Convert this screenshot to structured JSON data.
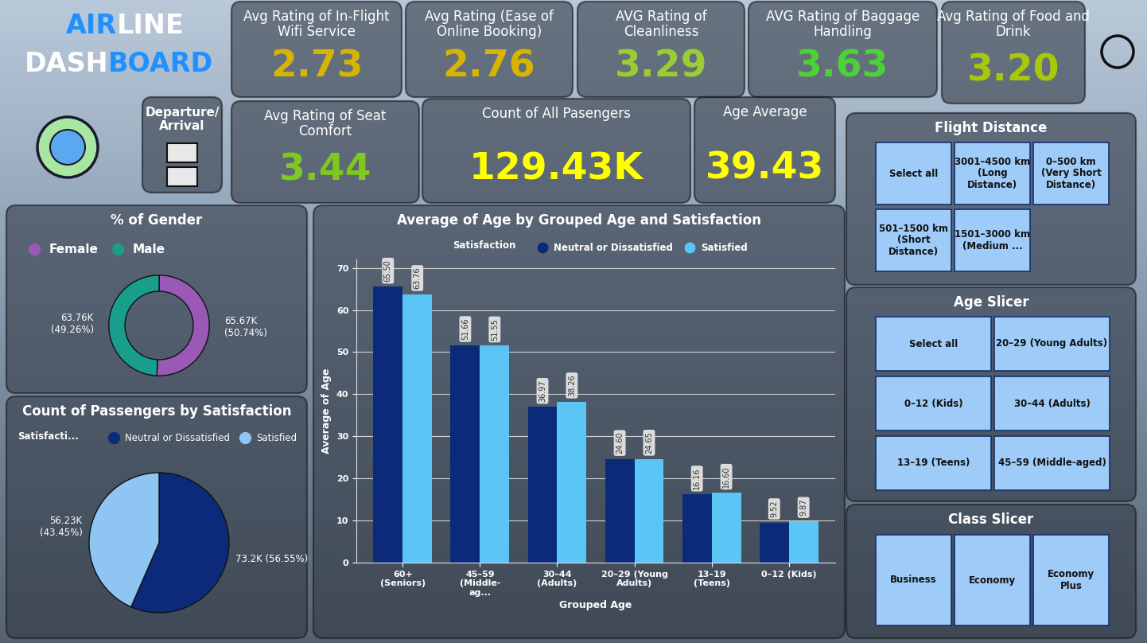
{
  "header": {
    "title_lines": [
      [
        "AIR",
        "LINE"
      ],
      [
        "DASH",
        "BOARD"
      ]
    ],
    "departure_label": "Departure/\nArrival"
  },
  "kpis": [
    {
      "label": "Avg Rating of In-Flight Wifi Service",
      "value": "2.73",
      "color": "#d6b400"
    },
    {
      "label": "Avg Rating (Ease of Online Booking)",
      "value": "2.76",
      "color": "#d6b400"
    },
    {
      "label": "AVG Rating of Cleanliness",
      "value": "3.29",
      "color": "#9acd32"
    },
    {
      "label": "AVG Rating of Baggage Handling",
      "value": "3.63",
      "color": "#4cd137"
    },
    {
      "label": "Avg Rating of Food and Drink",
      "value": "3.20",
      "color": "#a8c80a"
    },
    {
      "label": "Avg Rating of Seat Comfort",
      "value": "3.44",
      "color": "#7ec820"
    },
    {
      "label": "Count of All Pasengers",
      "value": "129.43K",
      "color": "#ffff00"
    },
    {
      "label": "Age Average",
      "value": "39.43",
      "color": "#ffff00"
    }
  ],
  "chart_data": [
    {
      "type": "donut",
      "title": "% of Gender",
      "categories": [
        "Female",
        "Male"
      ],
      "values": [
        65670,
        63760
      ],
      "value_labels": [
        "65.67K\n(50.74%)",
        "63.76K\n(49.26%)"
      ],
      "colors": [
        "#9b59b6",
        "#1a9e8c"
      ],
      "legend": "upper left",
      "data_labels": true
    },
    {
      "type": "pie",
      "title": "Count of Passengers by Satisfaction",
      "legend_title": "Satisfacti...",
      "categories": [
        "Neutral or Dissatisfied",
        "Satisfied"
      ],
      "values": [
        73200,
        56230
      ],
      "value_labels": [
        "73.2K (56.55%)",
        "56.23K\n(43.45%)"
      ],
      "colors": [
        "#0b2a7a",
        "#8ec5f2"
      ],
      "legend": "upper left",
      "data_labels": true
    },
    {
      "type": "bar",
      "title": "Average of Age by Grouped Age and Satisfaction",
      "x_label": "Grouped Age",
      "y_label": "Average of Age",
      "legend_title": "Satisfaction",
      "categories": [
        "60+ (Seniors)",
        "45–59 (Middle-ag...",
        "30–44 (Adults)",
        "20–29 (Young Adults)",
        "13–19 (Teens)",
        "0–12 (Kids)"
      ],
      "series": [
        {
          "name": "Neutral or Dissatisfied",
          "color": "#0c2a7a",
          "values": [
            65.5,
            51.66,
            36.97,
            24.6,
            16.16,
            9.52
          ],
          "value_labels": [
            "65.50",
            "51.66",
            "36.97",
            "24.60",
            "16.16",
            "9.52"
          ]
        },
        {
          "name": "Satisfied",
          "color": "#5bc5f5",
          "values": [
            63.76,
            51.55,
            38.26,
            24.65,
            16.6,
            9.87
          ],
          "value_labels": [
            "63.76",
            "51.55",
            "38.26",
            "24.65",
            "16.60",
            "9.87"
          ]
        }
      ],
      "ylim": [
        0,
        72
      ],
      "yticks": [
        0,
        10,
        20,
        30,
        40,
        50,
        60,
        70
      ],
      "grid": true,
      "legend": "upper left",
      "data_labels": true
    }
  ],
  "slicers": [
    {
      "title": "Flight Distance",
      "options": [
        "Select all",
        "3001–4500 km (Long Distance)",
        "0–500 km (Very Short Distance)",
        "501–1500 km (Short Distance)",
        "1501–3000 km (Medium ..."
      ]
    },
    {
      "title": "Age Slicer",
      "options": [
        "Select all",
        "20–29 (Young Adults)",
        "0–12 (Kids)",
        "30–44 (Adults)",
        "13–19 (Teens)",
        "45–59 (Middle-aged)"
      ]
    },
    {
      "title": "Class Slicer",
      "options": [
        "Business",
        "Economy",
        "Economy Plus"
      ]
    }
  ]
}
